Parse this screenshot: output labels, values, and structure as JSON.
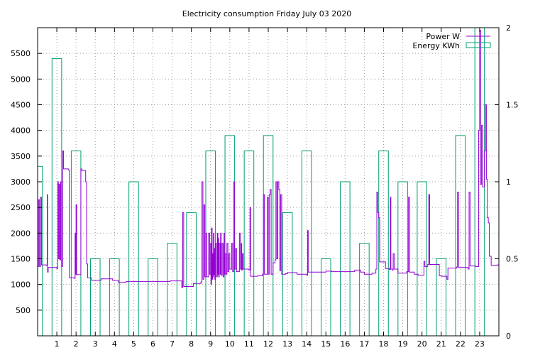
{
  "chart_data": {
    "type": "line",
    "title": "Electricity consumption Friday July 03 2020",
    "xlabel": "",
    "ylabel": "",
    "xlim": [
      0,
      24
    ],
    "ylim": [
      0,
      6000
    ],
    "y2lim": [
      0,
      2
    ],
    "grid": true,
    "legend_position": "top-right",
    "x_ticks": [
      1,
      2,
      3,
      4,
      5,
      6,
      7,
      8,
      9,
      10,
      11,
      12,
      13,
      14,
      15,
      16,
      17,
      18,
      19,
      20,
      21,
      22,
      23
    ],
    "y_ticks": [
      500,
      1000,
      1500,
      2000,
      2500,
      3000,
      3500,
      4000,
      4500,
      5000,
      5500
    ],
    "y2_ticks": [
      0,
      0.5,
      1,
      1.5,
      2
    ],
    "y2_tick_labels": [
      "0",
      "0.5",
      "1",
      "1.5",
      "2"
    ],
    "colors": {
      "power": "#9400d3",
      "energy": "#009e73"
    },
    "series": [
      {
        "name": "Power W",
        "axis": "y",
        "style": "steps",
        "points": [
          [
            0.0,
            1350
          ],
          [
            0.05,
            2650
          ],
          [
            0.1,
            1350
          ],
          [
            0.15,
            2700
          ],
          [
            0.2,
            1380
          ],
          [
            0.45,
            1370
          ],
          [
            0.5,
            2750
          ],
          [
            0.52,
            1240
          ],
          [
            0.55,
            1330
          ],
          [
            1.0,
            1310
          ],
          [
            1.05,
            3000
          ],
          [
            1.08,
            1500
          ],
          [
            1.12,
            2950
          ],
          [
            1.15,
            1480
          ],
          [
            1.2,
            3000
          ],
          [
            1.25,
            1350
          ],
          [
            1.3,
            3600
          ],
          [
            1.35,
            3250
          ],
          [
            1.6,
            3230
          ],
          [
            1.65,
            1130
          ],
          [
            1.9,
            1120
          ],
          [
            1.95,
            2000
          ],
          [
            1.97,
            1200
          ],
          [
            2.0,
            2550
          ],
          [
            2.03,
            1190
          ],
          [
            2.25,
            3250
          ],
          [
            2.3,
            3220
          ],
          [
            2.5,
            3000
          ],
          [
            2.55,
            1400
          ],
          [
            2.6,
            1130
          ],
          [
            2.8,
            1080
          ],
          [
            3.3,
            1110
          ],
          [
            3.9,
            1080
          ],
          [
            4.2,
            1040
          ],
          [
            4.6,
            1060
          ],
          [
            6.9,
            1070
          ],
          [
            7.5,
            940
          ],
          [
            7.55,
            2400
          ],
          [
            7.6,
            960
          ],
          [
            8.1,
            1020
          ],
          [
            8.5,
            1050
          ],
          [
            8.55,
            3000
          ],
          [
            8.6,
            1100
          ],
          [
            8.65,
            2550
          ],
          [
            8.7,
            1150
          ],
          [
            8.75,
            2000
          ],
          [
            8.8,
            1150
          ],
          [
            8.9,
            2000
          ],
          [
            8.95,
            1200
          ],
          [
            9.0,
            1800
          ],
          [
            9.02,
            1000
          ],
          [
            9.05,
            2100
          ],
          [
            9.08,
            1100
          ],
          [
            9.1,
            1600
          ],
          [
            9.12,
            1150
          ],
          [
            9.15,
            2000
          ],
          [
            9.18,
            1200
          ],
          [
            9.2,
            1700
          ],
          [
            9.22,
            1100
          ],
          [
            9.25,
            1800
          ],
          [
            9.3,
            1150
          ],
          [
            9.35,
            2000
          ],
          [
            9.38,
            1200
          ],
          [
            9.4,
            1900
          ],
          [
            9.42,
            1150
          ],
          [
            9.45,
            1800
          ],
          [
            9.5,
            1200
          ],
          [
            9.52,
            2000
          ],
          [
            9.55,
            1180
          ],
          [
            9.6,
            1800
          ],
          [
            9.65,
            1150
          ],
          [
            9.7,
            2000
          ],
          [
            9.72,
            1200
          ],
          [
            9.75,
            1600
          ],
          [
            9.8,
            1200
          ],
          [
            9.85,
            1800
          ],
          [
            9.9,
            1250
          ],
          [
            9.95,
            1600
          ],
          [
            10.0,
            1300
          ],
          [
            10.1,
            1800
          ],
          [
            10.15,
            1250
          ],
          [
            10.2,
            3000
          ],
          [
            10.25,
            1300
          ],
          [
            10.3,
            1700
          ],
          [
            10.35,
            1250
          ],
          [
            10.5,
            2000
          ],
          [
            10.55,
            1300
          ],
          [
            10.6,
            1800
          ],
          [
            10.62,
            1280
          ],
          [
            10.65,
            1600
          ],
          [
            10.7,
            1300
          ],
          [
            11.0,
            1280
          ],
          [
            11.05,
            2500
          ],
          [
            11.08,
            1160
          ],
          [
            11.45,
            1170
          ],
          [
            11.7,
            1200
          ],
          [
            11.75,
            2750
          ],
          [
            11.8,
            1200
          ],
          [
            11.9,
            1200
          ],
          [
            11.95,
            2700
          ],
          [
            12.0,
            1200
          ],
          [
            12.05,
            2750
          ],
          [
            12.1,
            2850
          ],
          [
            12.15,
            1200
          ],
          [
            12.25,
            1420
          ],
          [
            12.35,
            1480
          ],
          [
            12.4,
            3000
          ],
          [
            12.45,
            1500
          ],
          [
            12.5,
            3000
          ],
          [
            12.55,
            2850
          ],
          [
            12.6,
            1270
          ],
          [
            12.65,
            2750
          ],
          [
            12.7,
            1200
          ],
          [
            12.9,
            1210
          ],
          [
            13.0,
            1230
          ],
          [
            13.5,
            1200
          ],
          [
            14.0,
            1180
          ],
          [
            14.05,
            2050
          ],
          [
            14.08,
            1240
          ],
          [
            15.0,
            1260
          ],
          [
            15.3,
            1250
          ],
          [
            16.5,
            1280
          ],
          [
            16.8,
            1240
          ],
          [
            17.0,
            1200
          ],
          [
            17.4,
            1220
          ],
          [
            17.6,
            1300
          ],
          [
            17.65,
            2800
          ],
          [
            17.7,
            2400
          ],
          [
            17.75,
            2300
          ],
          [
            17.8,
            1440
          ],
          [
            18.1,
            1310
          ],
          [
            18.3,
            1290
          ],
          [
            18.35,
            2700
          ],
          [
            18.38,
            1300
          ],
          [
            18.45,
            1280
          ],
          [
            18.5,
            1600
          ],
          [
            18.55,
            1300
          ],
          [
            18.75,
            1220
          ],
          [
            19.2,
            1250
          ],
          [
            19.3,
            2700
          ],
          [
            19.35,
            1240
          ],
          [
            19.6,
            1200
          ],
          [
            19.8,
            1180
          ],
          [
            20.1,
            1450
          ],
          [
            20.15,
            1350
          ],
          [
            20.3,
            1390
          ],
          [
            20.35,
            2750
          ],
          [
            20.4,
            1390
          ],
          [
            20.9,
            1170
          ],
          [
            21.0,
            1160
          ],
          [
            21.3,
            1100
          ],
          [
            21.35,
            1320
          ],
          [
            21.8,
            1340
          ],
          [
            21.85,
            2800
          ],
          [
            21.9,
            1330
          ],
          [
            22.0,
            1330
          ],
          [
            22.4,
            1300
          ],
          [
            22.45,
            2800
          ],
          [
            22.5,
            1360
          ],
          [
            22.7,
            1360
          ],
          [
            22.8,
            1350
          ],
          [
            22.95,
            4000
          ],
          [
            23.0,
            5950
          ],
          [
            23.05,
            2950
          ],
          [
            23.1,
            4100
          ],
          [
            23.15,
            2900
          ],
          [
            23.25,
            3600
          ],
          [
            23.3,
            4500
          ],
          [
            23.35,
            3050
          ],
          [
            23.4,
            2300
          ],
          [
            23.45,
            2200
          ],
          [
            23.5,
            1550
          ],
          [
            23.6,
            1370
          ],
          [
            23.9,
            1380
          ],
          [
            24.0,
            1380
          ]
        ]
      },
      {
        "name": "Energy KWh",
        "axis": "y2",
        "style": "boxes",
        "box_width": 0.5,
        "x": [
          0,
          1,
          2,
          3,
          4,
          5,
          6,
          7,
          8,
          9,
          10,
          11,
          12,
          13,
          14,
          15,
          16,
          17,
          18,
          19,
          20,
          21,
          22,
          23
        ],
        "values": [
          1.1,
          1.8,
          1.2,
          0.5,
          0.5,
          1.0,
          0.5,
          0.6,
          0.8,
          1.2,
          1.3,
          1.2,
          1.3,
          0.8,
          1.2,
          0.5,
          1.0,
          0.6,
          1.2,
          1.0,
          1.0,
          0.5,
          1.3,
          2.0
        ]
      }
    ]
  }
}
